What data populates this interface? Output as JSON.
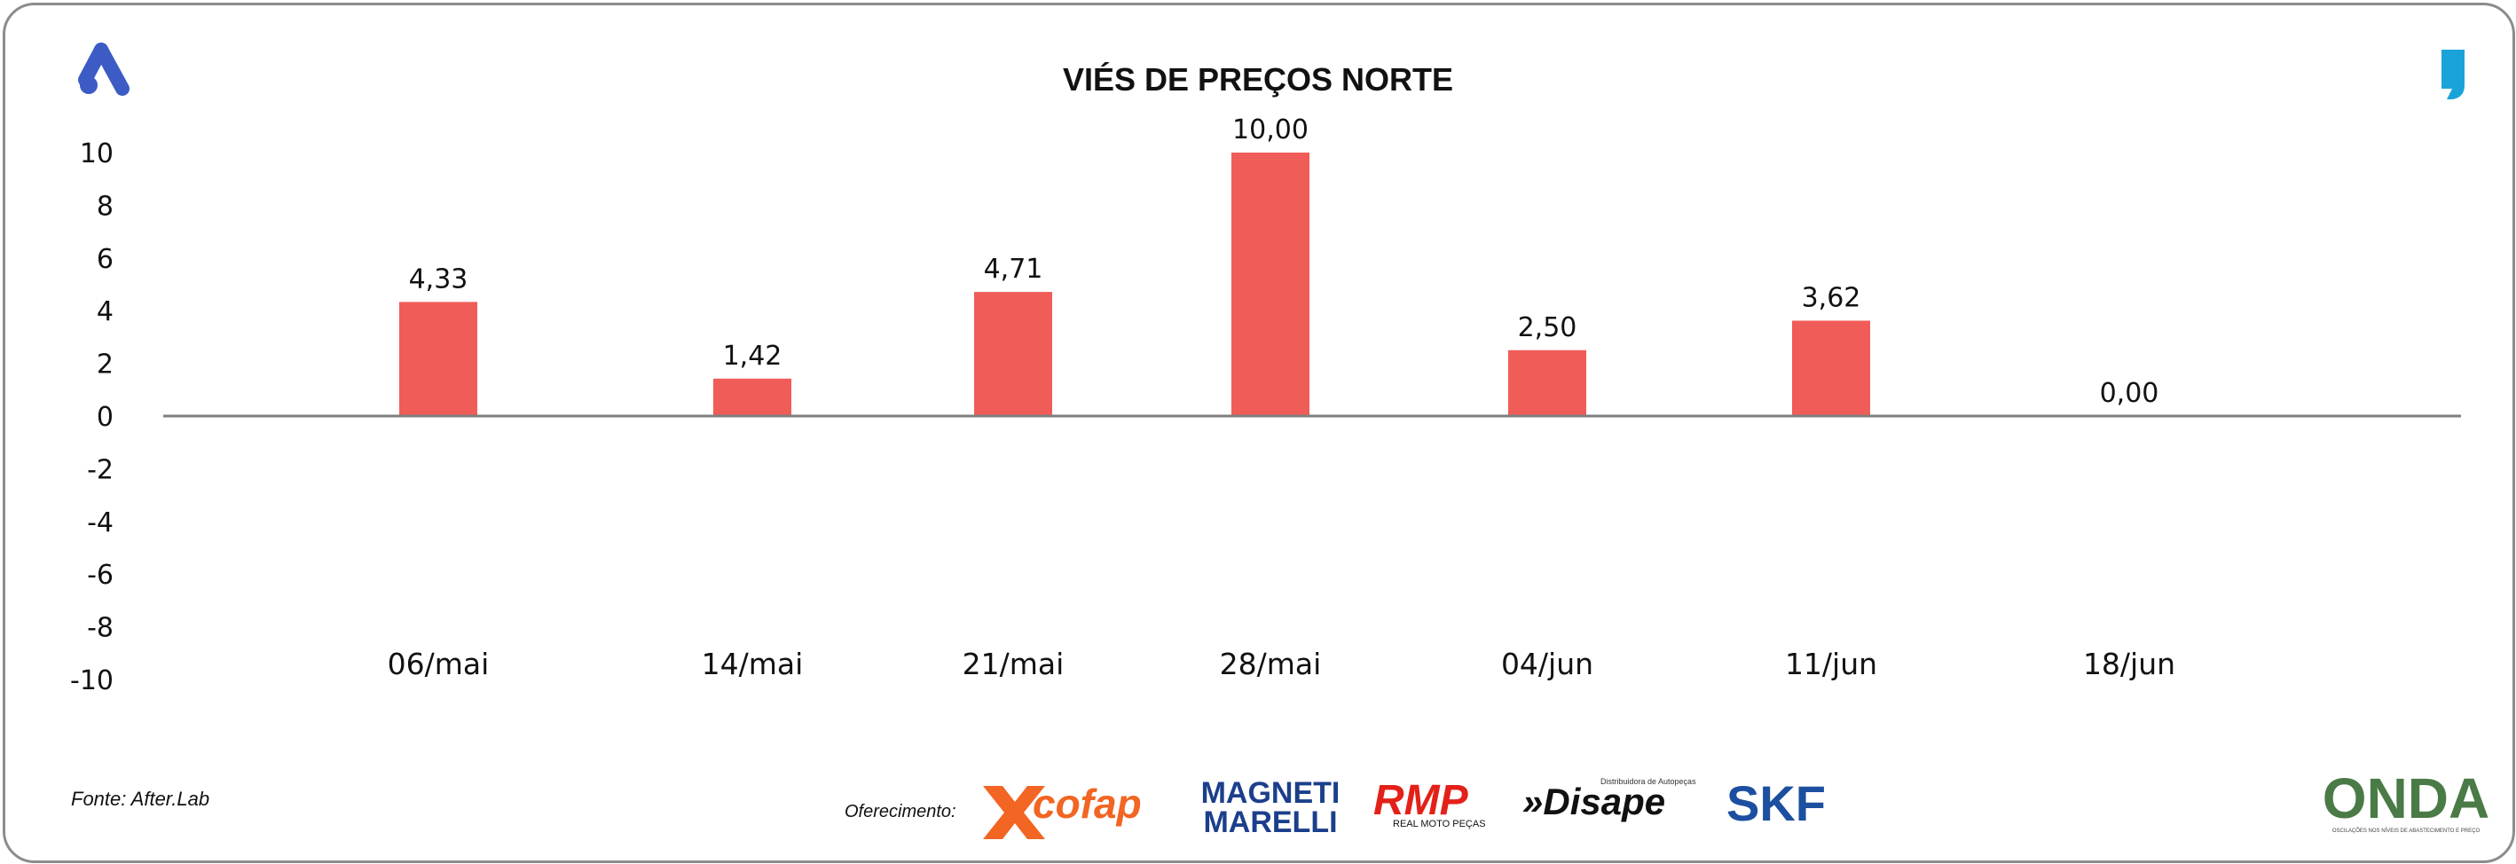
{
  "chart_data": {
    "type": "bar",
    "title": "VIÉS DE PREÇOS NORTE",
    "categories": [
      "06/mai",
      "14/mai",
      "21/mai",
      "28/mai",
      "04/jun",
      "11/jun",
      "18/jun"
    ],
    "values": [
      4.33,
      1.42,
      4.71,
      10.0,
      2.5,
      3.62,
      0.0
    ],
    "data_labels": [
      "4,33",
      "1,42",
      "4,71",
      "10,00",
      "2,50",
      "3,62",
      "0,00"
    ],
    "ylim": [
      -10,
      10
    ],
    "yticks": [
      10,
      8,
      6,
      4,
      2,
      0,
      -2,
      -4,
      -6,
      -8,
      -10
    ],
    "grid": false,
    "bar_color": "#f05c58"
  },
  "footer": {
    "source": "Fonte: After.Lab",
    "sponsor_label": "Oferecimento:"
  },
  "sponsors": {
    "cofap": "cofap",
    "magneti_top": "MAGNETI",
    "magneti_bottom": "MARELLI",
    "rmp": "RMP",
    "rmp_sub": "REAL MOTO PEÇAS",
    "disape_tag": "Distribuidora de Autopeças",
    "disape": "»Disape",
    "skf": "SKF",
    "onda": "ONDA",
    "onda_sub": "OSCILAÇÕES NOS NÍVEIS DE ABASTECIMENTO E PREÇO"
  },
  "colors": {
    "axis": "#7f7f7f",
    "logo_left": "#3c5bc4",
    "logo_right": "#1aa3d9",
    "cofap": "#f26522",
    "magneti": "#1b3f8b",
    "rmp": "#e32119",
    "skf": "#1c4fa0",
    "onda": "#4a7a46"
  }
}
